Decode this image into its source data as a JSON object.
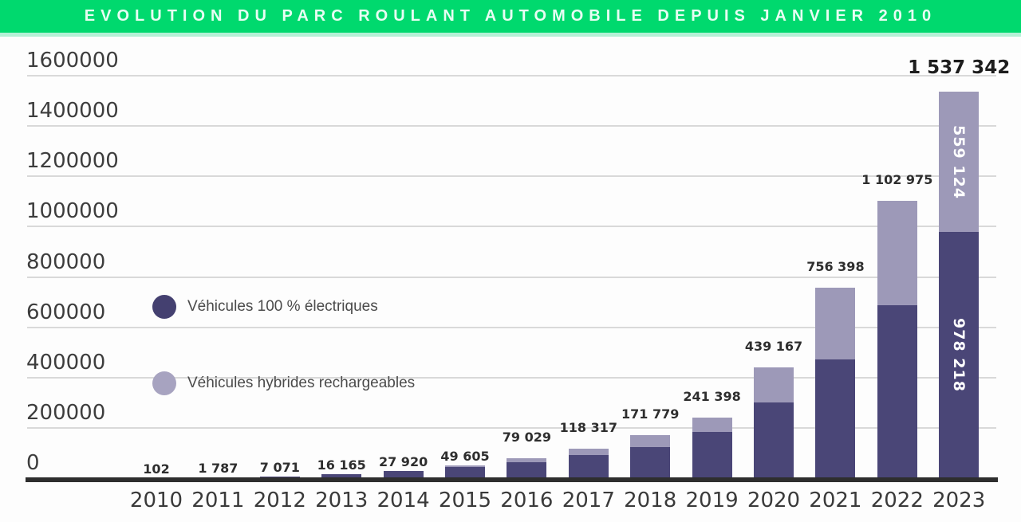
{
  "header": {
    "title": "EVOLUTION DU PARC ROULANT AUTOMOBILE DEPUIS JANVIER 2010",
    "background_color": "#00d96e",
    "text_color": "#e7fdf3"
  },
  "legend": [
    {
      "label": "Véhicules 100 % électriques",
      "color": "#444070"
    },
    {
      "label": "Véhicules hybrides rechargeables",
      "color": "#a7a3c0"
    }
  ],
  "chart_data": {
    "type": "bar",
    "stacked": true,
    "title": "EVOLUTION DU PARC ROULANT AUTOMOBILE DEPUIS JANVIER 2010",
    "xlabel": "",
    "ylabel": "",
    "ylim": [
      0,
      1600000
    ],
    "grid": true,
    "legend_position": "inside-left",
    "categories": [
      "2010",
      "2011",
      "2012",
      "2013",
      "2014",
      "2015",
      "2016",
      "2017",
      "2018",
      "2019",
      "2020",
      "2021",
      "2022",
      "2023"
    ],
    "series": [
      {
        "name": "Véhicules 100 % électriques",
        "key": "electric",
        "color": "#4a4677",
        "values": [
          102,
          1787,
          7071,
          16165,
          27920,
          43000,
          63029,
          93000,
          124000,
          184000,
          300000,
          472000,
          689000,
          978218
        ]
      },
      {
        "name": "Véhicules hybrides rechargeables",
        "key": "hybrid",
        "color": "#9d99b8",
        "values": [
          0,
          0,
          0,
          0,
          0,
          6605,
          16000,
          25317,
          47779,
          57398,
          139167,
          284398,
          413975,
          559124
        ]
      }
    ],
    "totals": [
      102,
      1787,
      7071,
      16165,
      27920,
      49605,
      79029,
      118317,
      171779,
      241398,
      439167,
      756398,
      1102975,
      1537342
    ],
    "total_labels": [
      "102",
      "1 787",
      "7 071",
      "16 165",
      "27 920",
      "49 605",
      "79 029",
      "118 317",
      "171 779",
      "241 398",
      "439 167",
      "756 398",
      "1 102 975",
      "1 537 342"
    ],
    "emphasized_total": "2023",
    "segment_labels": [
      {
        "category": "2023",
        "series": "hybrid",
        "text": "559 124"
      },
      {
        "category": "2023",
        "series": "electric",
        "text": "978 218"
      }
    ],
    "y_axis": {
      "ticks": [
        {
          "value": 1600000,
          "label": "1600000"
        },
        {
          "value": 1400000,
          "label": "1400000"
        },
        {
          "value": 1200000,
          "label": "1200000"
        },
        {
          "value": 1000000,
          "label": "1000000"
        },
        {
          "value": 800000,
          "label": "800000"
        },
        {
          "value": 600000,
          "label": "600000"
        },
        {
          "value": 400000,
          "label": "400000"
        },
        {
          "value": 200000,
          "label": "200000"
        },
        {
          "value": 0,
          "label": "0"
        }
      ]
    }
  }
}
